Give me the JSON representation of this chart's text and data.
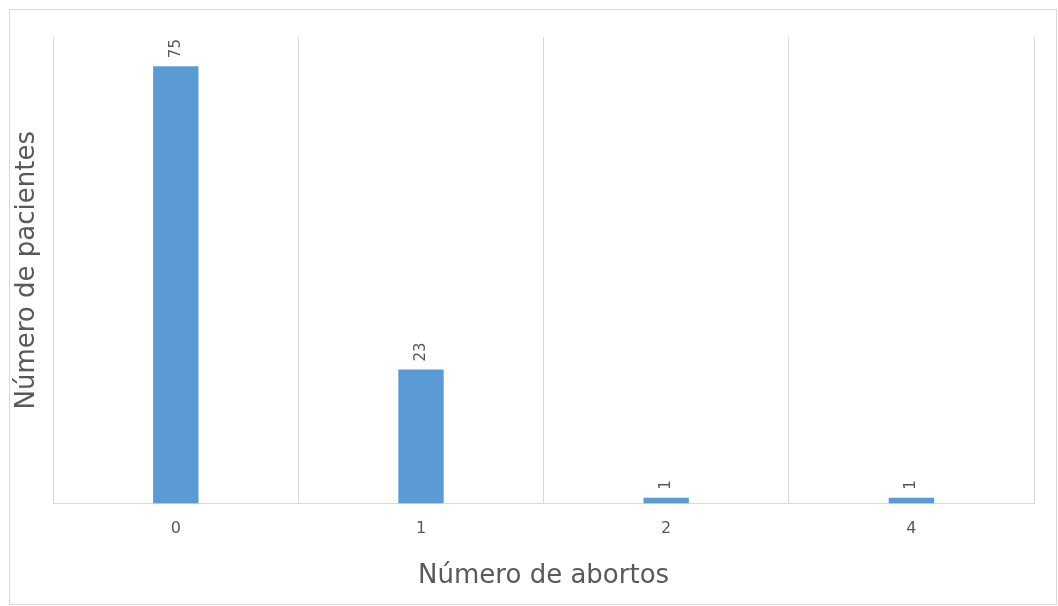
{
  "chart_data": {
    "type": "bar",
    "xlabel": "Número de abortos",
    "ylabel": "Número de pacientes",
    "categories": [
      "0",
      "1",
      "2",
      "4"
    ],
    "values": [
      75,
      23,
      1,
      1
    ],
    "color": "#5b9bd5",
    "data_labels": true,
    "grid": "x",
    "tick_labels": "x",
    "legend": false
  }
}
